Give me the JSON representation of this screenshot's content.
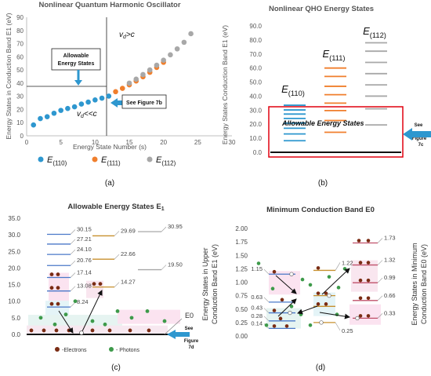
{
  "chart_data": [
    {
      "type": "scatter",
      "panel_label": "(a)",
      "title": "Nonlinear Quantum Harmonic Oscillator",
      "xlabel": "Energy State Number (s)",
      "ylabel": "Energy States in Conduction Band E1 (eV)",
      "xlim": [
        0,
        30
      ],
      "ylim": [
        0,
        90
      ],
      "xticks": [
        "0",
        "5",
        "10",
        "15",
        "20",
        "25",
        "30"
      ],
      "yticks": [
        "0",
        "10",
        "20",
        "30",
        "40",
        "50",
        "60",
        "70",
        "80",
        "90"
      ],
      "grid": false,
      "series": [
        {
          "name": "E(110)",
          "name_main": "E",
          "name_sub": "(110)",
          "color": "#2e97cf",
          "x": [
            1,
            2,
            3,
            4,
            5,
            6,
            7,
            8,
            9,
            10,
            11,
            12
          ],
          "y": [
            8.24,
            13.08,
            14.5,
            17.14,
            19.3,
            20.76,
            22.0,
            24.1,
            25.6,
            27.21,
            28.6,
            30.15
          ]
        },
        {
          "name": "E(111)",
          "name_main": "E",
          "name_sub": "(111)",
          "color": "#f07f2d",
          "x": [
            13,
            14,
            15,
            16,
            17,
            18,
            19,
            20
          ],
          "y": [
            33.5,
            36.0,
            38.7,
            41.6,
            44.8,
            48.2,
            51.9,
            55.8
          ]
        },
        {
          "name": "E(112)",
          "name_main": "E",
          "name_sub": "(112)",
          "color": "#a8a8a8",
          "x": [
            15,
            16,
            17,
            18,
            19,
            20,
            21,
            22,
            23,
            24
          ],
          "y": [
            40.0,
            43.0,
            46.5,
            50.0,
            53.6,
            57.4,
            61.5,
            66.0,
            71.0,
            77.5
          ]
        }
      ],
      "annotations": {
        "vd_high": "v_d>c",
        "vd_low": "v_d<<c",
        "allowable_box": "Allowable Energy States",
        "see_fig": "See Figure 7b"
      }
    },
    {
      "type": "bar",
      "panel_label": "(b)",
      "title": "Nonlinear QHO Energy States",
      "ylabel": "Energy States  Conduction Band E1 (eV)",
      "ylim": [
        0,
        90
      ],
      "yticks": [
        "0.0",
        "10.0",
        "20.0",
        "30.0",
        "40.0",
        "50.0",
        "60.0",
        "70.0",
        "80.0",
        "90.0"
      ],
      "columns": [
        {
          "label_main": "E",
          "label_sub": "(110)",
          "color": "#2e97cf",
          "levels": [
            8.24,
            13.08,
            17.14,
            20.76,
            24.1,
            27.21,
            30.15,
            33.5
          ]
        },
        {
          "label_main": "E",
          "label_sub": "(111)",
          "color": "#f07f2d",
          "levels": [
            14.27,
            22.66,
            29.69,
            35,
            41,
            47,
            54,
            60
          ]
        },
        {
          "label_main": "E",
          "label_sub": "(112)",
          "color": "#a8a8a8",
          "levels": [
            19.5,
            30.95,
            40,
            48,
            56,
            64,
            72,
            78
          ]
        }
      ],
      "ground": 0,
      "annotations": {
        "allowable": "Allowable Energy States",
        "see": [
          "See",
          "Figure",
          "7c"
        ]
      }
    },
    {
      "type": "bar",
      "panel_label": "(c)",
      "title_main": "Allowable Energy States E",
      "title_sub": "1",
      "ylabel": [
        "Energy States in Upper",
        "Conduction Band E1 (eV)"
      ],
      "ylim": [
        0,
        35
      ],
      "yticks": [
        "0.0",
        "5.0",
        "10.0",
        "15.0",
        "20.0",
        "25.0",
        "30.0",
        "35.0"
      ],
      "columns": [
        {
          "color": "#4a78c8",
          "levels": [
            8.24,
            13.08,
            17.14,
            20.76,
            24.1,
            27.21,
            30.15
          ],
          "labels": [
            "8.24",
            "13.08",
            "17.14",
            "20.76",
            "24.10",
            "27.21",
            "30.15"
          ]
        },
        {
          "color": "#c8902e",
          "levels": [
            14.27,
            22.66,
            29.69
          ],
          "labels": [
            "14.27",
            "22.66",
            "29.69"
          ]
        },
        {
          "color": "#a8a8a8",
          "levels": [
            19.5,
            30.95
          ],
          "labels": [
            "19.50",
            "30.95"
          ]
        }
      ],
      "ground_label": "E0",
      "legend": [
        "-Electrons",
        "- Photons"
      ],
      "see": [
        "See",
        "Figure",
        "7d"
      ]
    },
    {
      "type": "bar",
      "panel_label": "(d)",
      "title": "Minimum Conduction Band E0",
      "ylabel": [
        "Energy States in Minimum",
        "Conduction Band E0 (eV)"
      ],
      "ylim": [
        0,
        2.0
      ],
      "yticks": [
        "0.00",
        "0.25",
        "0.50",
        "0.75",
        "1.00",
        "1.25",
        "1.50",
        "1.75",
        "2.00"
      ],
      "columns": [
        {
          "color": "#4a78c8",
          "levels": [
            0.14,
            0.28,
            0.43,
            0.63,
            1.15
          ],
          "labels": [
            "0.14",
            "0.28",
            "0.43",
            "0.63",
            "1.15"
          ]
        },
        {
          "color": "#c8902e",
          "levels": [
            0.25,
            0.55,
            0.75,
            1.22
          ],
          "labels": [
            "0.25",
            "",
            "",
            "1.22"
          ]
        },
        {
          "color": "#c0506a",
          "levels": [
            0.33,
            0.66,
            0.99,
            1.32,
            1.73
          ],
          "labels": [
            "0.33",
            "0.66",
            "0.99",
            "1.32",
            "1.73"
          ]
        }
      ]
    }
  ]
}
